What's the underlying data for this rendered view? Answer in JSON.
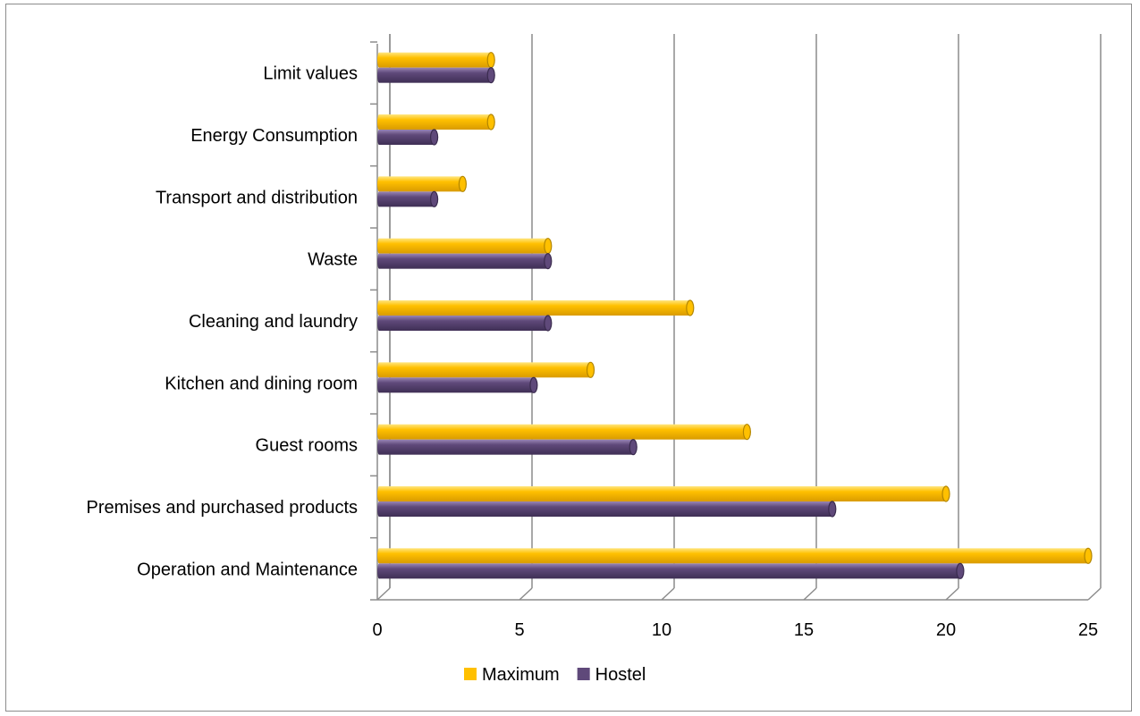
{
  "chart_data": {
    "type": "bar",
    "orientation": "horizontal",
    "style": "3d-cylinder",
    "categories": [
      "Operation and Maintenance",
      "Premises and purchased products",
      "Guest rooms",
      "Kitchen and dining room",
      "Cleaning and laundry",
      "Waste",
      "Transport and distribution",
      "Energy Consumption",
      "Limit values"
    ],
    "series": [
      {
        "name": "Maximum",
        "color": "#FFC000",
        "values": [
          25,
          20,
          13,
          7.5,
          11,
          6,
          3,
          4,
          4
        ]
      },
      {
        "name": "Hostel",
        "color": "#5F497A",
        "values": [
          20.5,
          16,
          9,
          5.5,
          6,
          6,
          2,
          2,
          4
        ]
      }
    ],
    "xlim": [
      0,
      25
    ],
    "xticks": [
      "0",
      "5",
      "10",
      "15",
      "20",
      "25"
    ],
    "grid": "vertical",
    "legend_position": "bottom"
  }
}
